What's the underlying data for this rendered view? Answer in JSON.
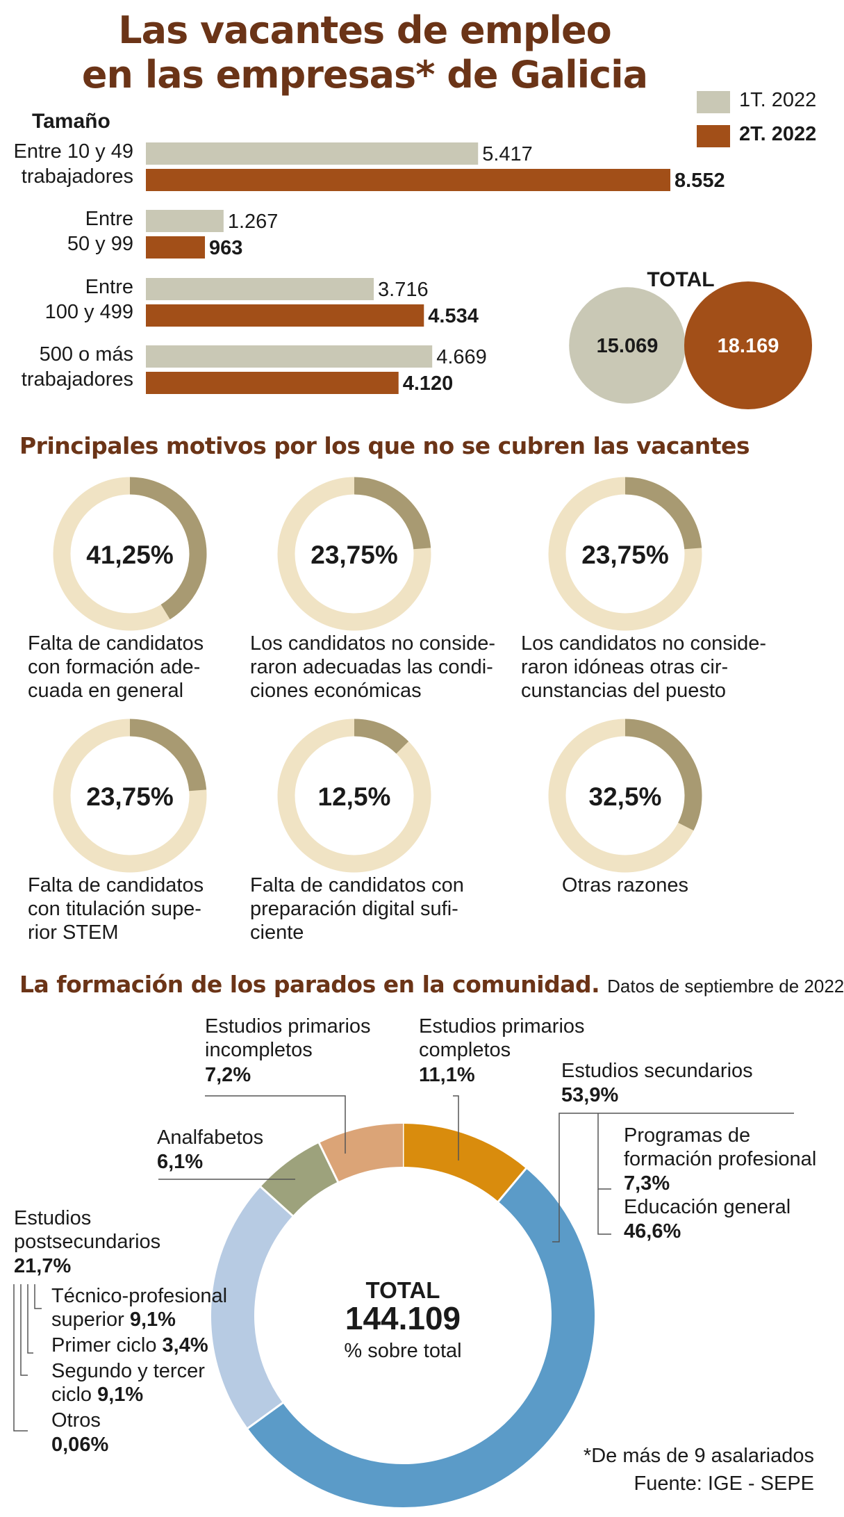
{
  "title_line1": "Las vacantes de empleo",
  "title_line2": "en las empresas* de Galicia",
  "legend": {
    "q1": "1T. 2022",
    "q2": "2T. 2022"
  },
  "colors": {
    "q1": "#c9c8b5",
    "q2": "#a24f18",
    "title": "#6b3417",
    "donut_fill": "#a89a72",
    "donut_track": "#f0e3c4"
  },
  "size_label": "Tamaño",
  "chart_data": [
    {
      "type": "bar",
      "orientation": "horizontal",
      "categories": [
        "Entre 10 y 49 trabajadores",
        "Entre 50 y 99",
        "Entre 100 y 499",
        "500 o más trabajadores"
      ],
      "series": [
        {
          "name": "1T. 2022",
          "values": [
            5417,
            1267,
            3716,
            4669
          ],
          "labels": [
            "5.417",
            "1.267",
            "3.716",
            "4.669"
          ]
        },
        {
          "name": "2T. 2022",
          "values": [
            8552,
            963,
            4534,
            4120
          ],
          "labels": [
            "8.552",
            "963",
            "4.534",
            "4.120"
          ]
        }
      ]
    },
    {
      "type": "bubble",
      "title": "TOTAL",
      "values": [
        15069,
        18169
      ],
      "labels": [
        "15.069",
        "18.169"
      ]
    },
    {
      "type": "pie",
      "title": "Principales motivos por los que no se cubren las vacantes",
      "items": [
        {
          "value": 41.25,
          "label": "41,25%",
          "caption": [
            "Falta de candidatos",
            "con formación ade-",
            "cuada en general"
          ]
        },
        {
          "value": 23.75,
          "label": "23,75%",
          "caption": [
            "Los candidatos no conside-",
            "raron adecuadas las condi-",
            "ciones económicas"
          ]
        },
        {
          "value": 23.75,
          "label": "23,75%",
          "caption": [
            "Los candidatos no conside-",
            "raron idóneas otras cir-",
            "cunstancias del puesto"
          ]
        },
        {
          "value": 23.75,
          "label": "23,75%",
          "caption": [
            "Falta de candidatos",
            "con titulación supe-",
            "rior STEM"
          ]
        },
        {
          "value": 12.5,
          "label": "12,5%",
          "caption": [
            "Falta de candidatos con",
            "preparación digital sufi-",
            "ciente"
          ]
        },
        {
          "value": 32.5,
          "label": "32,5%",
          "caption": [
            "Otras razones"
          ]
        }
      ]
    },
    {
      "type": "pie",
      "title": "La formación de los parados en la comunidad.",
      "subtitle": "Datos de septiembre de 2022",
      "center": {
        "title": "TOTAL",
        "value": "144.109",
        "note": "% sobre total"
      },
      "slices": [
        {
          "name": "Estudios primarios completos",
          "value": 11.1,
          "color": "#d98c0d"
        },
        {
          "name": "Estudios secundarios",
          "value": 53.9,
          "color": "#5b9bc8"
        },
        {
          "name": "Estudios postsecundarios",
          "value": 21.7,
          "color": "#b7cbe3"
        },
        {
          "name": "Analfabetos",
          "value": 6.1,
          "color": "#9da27c"
        },
        {
          "name": "Estudios primarios incompletos",
          "value": 7.2,
          "color": "#dba477"
        }
      ],
      "labels": {
        "prim_inc": {
          "name1": "Estudios primarios",
          "name2": "incompletos",
          "pct": "7,2%"
        },
        "prim_com": {
          "name1": "Estudios primarios",
          "name2": "completos",
          "pct": "11,1%"
        },
        "secund": {
          "name": "Estudios secundarios",
          "pct": "53,9%"
        },
        "fp": {
          "name1": "Programas de",
          "name2": "formación profesional",
          "pct": "7,3%"
        },
        "edu_gen": {
          "name": "Educación general",
          "pct": "46,6%"
        },
        "analf": {
          "name": "Analfabetos",
          "pct": "6,1%"
        },
        "postsec": {
          "name1": "Estudios",
          "name2": "postsecundarios",
          "pct": "21,7%"
        },
        "tec_prof": {
          "name1": "Técnico-profesional",
          "name2": "superior",
          "pct": "9,1%"
        },
        "primer": {
          "name": "Primer ciclo",
          "pct": "3,4%"
        },
        "segundo": {
          "name1": "Segundo y tercer",
          "name2": "ciclo",
          "pct": "9,1%"
        },
        "otros": {
          "name": "Otros",
          "pct": "0,06%"
        }
      }
    }
  ],
  "footnote": "*De más de 9 asalariados",
  "source": "Fuente: IGE - SEPE"
}
